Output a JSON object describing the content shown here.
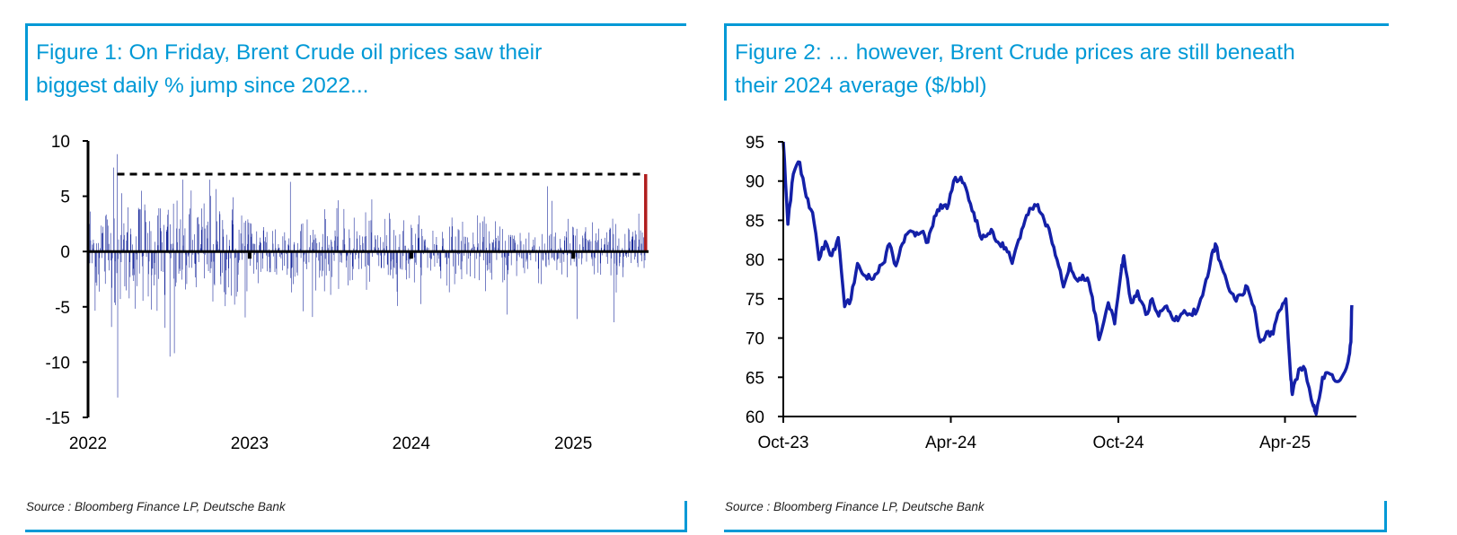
{
  "figure1": {
    "title_line1": "Figure 1: On Friday, Brent Crude oil prices saw their",
    "title_line2": "biggest daily % jump since 2022...",
    "source": "Source : Bloomberg Finance LP, Deutsche Bank",
    "chart_data": {
      "type": "bar",
      "ylim": [
        -15,
        10
      ],
      "yticks": [
        "10",
        "5",
        "0",
        "-5",
        "-10",
        "-15"
      ],
      "xticks": [
        "2022",
        "2023",
        "2024",
        "2025"
      ],
      "extremes": [
        {
          "date": "2022-02-28",
          "value": 7.6
        },
        {
          "date": "2022-03-08",
          "value": 8.8
        },
        {
          "date": "2022-03-09",
          "value": -13.2
        },
        {
          "date": "2022-05-02",
          "value": 5.5
        },
        {
          "date": "2022-06-24",
          "value": -6.9
        },
        {
          "date": "2022-07-05",
          "value": -9.5
        },
        {
          "date": "2022-07-15",
          "value": -9.2
        },
        {
          "date": "2022-10-03",
          "value": 6.5
        },
        {
          "date": "2022-11-28",
          "value": -4.8
        },
        {
          "date": "2023-04-03",
          "value": 6.3
        },
        {
          "date": "2023-05-02",
          "value": -5.4
        },
        {
          "date": "2024-08-05",
          "value": -5.7
        },
        {
          "date": "2024-11-04",
          "value": 5.9
        },
        {
          "date": "2025-01-10",
          "value": -6.1
        },
        {
          "date": "2025-04-03",
          "value": -6.4
        },
        {
          "date": "2025-06-13",
          "value": 7.0
        }
      ],
      "highlight": {
        "date": "2025-06-13",
        "value": 7.0,
        "color": "#b01e1e"
      },
      "reference_line": {
        "value": 7.0,
        "from": "2022-03-08",
        "to": "2025-06-13",
        "style": "dashed"
      },
      "bar_color": "#1a2a9c"
    }
  },
  "figure2": {
    "title_line1": "Figure 2: … however, Brent Crude prices are still beneath",
    "title_line2": "their 2024 average ($/bbl)",
    "source": "Source : Bloomberg Finance LP, Deutsche Bank",
    "chart_data": {
      "type": "line",
      "ylim": [
        60,
        95
      ],
      "yticks": [
        "95",
        "90",
        "85",
        "80",
        "75",
        "70",
        "65",
        "60"
      ],
      "xticks": [
        "Oct-23",
        "Apr-24",
        "Oct-24",
        "Apr-25"
      ],
      "line_color": "#1420a8",
      "series": [
        {
          "x": [
            "2023-10-01",
            "2023-10-06",
            "2023-10-12",
            "2023-10-19",
            "2023-10-26",
            "2023-11-02",
            "2023-11-09",
            "2023-11-16",
            "2023-11-23",
            "2023-11-30",
            "2023-12-07",
            "2023-12-14",
            "2023-12-21",
            "2023-12-28",
            "2024-01-04",
            "2024-01-11",
            "2024-01-18",
            "2024-01-25",
            "2024-02-01",
            "2024-02-08",
            "2024-02-15",
            "2024-02-22",
            "2024-02-29",
            "2024-03-07",
            "2024-03-14",
            "2024-03-21",
            "2024-03-28",
            "2024-04-04",
            "2024-04-12",
            "2024-04-19",
            "2024-04-26",
            "2024-05-03",
            "2024-05-10",
            "2024-05-17",
            "2024-05-24",
            "2024-05-31",
            "2024-06-07",
            "2024-06-14",
            "2024-06-21",
            "2024-06-28",
            "2024-07-05",
            "2024-07-12",
            "2024-07-19",
            "2024-07-26",
            "2024-08-02",
            "2024-08-09",
            "2024-08-16",
            "2024-08-23",
            "2024-08-30",
            "2024-09-06",
            "2024-09-10",
            "2024-09-20",
            "2024-09-27",
            "2024-10-04",
            "2024-10-07",
            "2024-10-15",
            "2024-10-22",
            "2024-10-31",
            "2024-11-07",
            "2024-11-14",
            "2024-11-21",
            "2024-11-28",
            "2024-12-05",
            "2024-12-12",
            "2024-12-19",
            "2024-12-26",
            "2025-01-03",
            "2025-01-10",
            "2025-01-15",
            "2025-01-22",
            "2025-01-29",
            "2025-02-05",
            "2025-02-12",
            "2025-02-19",
            "2025-02-26",
            "2025-03-05",
            "2025-03-12",
            "2025-03-19",
            "2025-03-26",
            "2025-04-02",
            "2025-04-07",
            "2025-04-09",
            "2025-04-16",
            "2025-04-23",
            "2025-05-02",
            "2025-05-05",
            "2025-05-12",
            "2025-05-19",
            "2025-05-26",
            "2025-06-02",
            "2025-06-09",
            "2025-06-12",
            "2025-06-13"
          ],
          "y": [
            95.0,
            84.5,
            90.9,
            92.4,
            88.0,
            86.0,
            80.0,
            82.3,
            80.5,
            82.8,
            74.0,
            75.0,
            79.5,
            78.0,
            77.6,
            78.2,
            79.5,
            82.0,
            79.2,
            82.0,
            83.5,
            83.0,
            83.5,
            82.2,
            85.5,
            87.0,
            86.5,
            90.0,
            90.5,
            88.5,
            86.0,
            83.0,
            83.0,
            83.5,
            82.0,
            81.5,
            79.5,
            82.5,
            85.0,
            86.5,
            87.0,
            85.0,
            83.0,
            80.0,
            76.5,
            79.5,
            77.5,
            78.0,
            77.0,
            73.0,
            69.8,
            74.5,
            71.8,
            78.5,
            80.5,
            74.5,
            76.0,
            73.0,
            75.0,
            72.8,
            74.0,
            72.8,
            72.2,
            73.5,
            73.0,
            73.5,
            76.5,
            80.0,
            82.0,
            79.0,
            76.5,
            75.0,
            75.5,
            76.5,
            74.0,
            69.5,
            70.8,
            70.5,
            73.5,
            75.0,
            65.5,
            62.8,
            66.0,
            66.0,
            61.3,
            60.3,
            65.0,
            65.5,
            64.5,
            65.0,
            67.0,
            69.5,
            74.2
          ]
        }
      ]
    }
  }
}
